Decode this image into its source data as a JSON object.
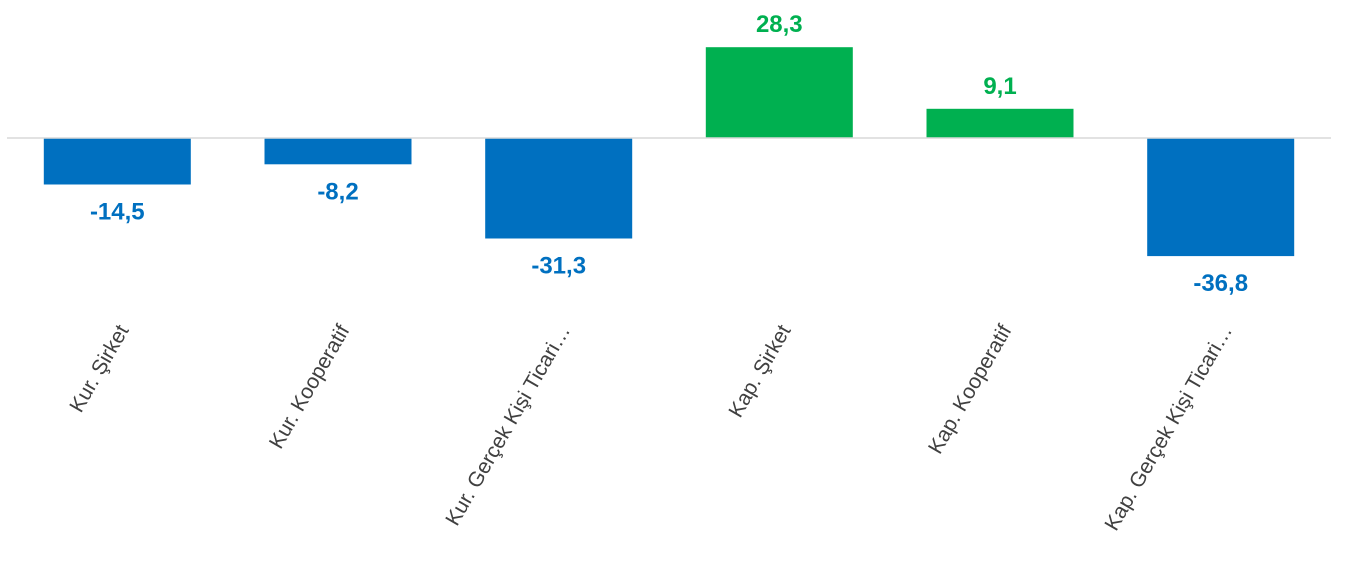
{
  "chart_data": {
    "type": "bar",
    "categories": [
      "Kur. Şirket",
      "Kur. Kooperatif",
      "Kur. Gerçek Kişi Ticari…",
      "Kap. Şirket",
      "Kap. Kooperatif",
      "Kap. Gerçek Kişi Ticari…"
    ],
    "values": [
      -14.5,
      -8.2,
      -31.3,
      28.3,
      9.1,
      -36.8
    ],
    "value_labels": [
      "-14,5",
      "-8,2",
      "-31,3",
      "28,3",
      "9,1",
      "-36,8"
    ],
    "title": "",
    "xlabel": "",
    "ylabel": "",
    "ylim": [
      -40,
      30
    ],
    "grid": false,
    "legend": "none",
    "colors": {
      "negative": "#0070C0",
      "positive": "#00B050",
      "axis": "#D9D9D9",
      "category_text": "#404040"
    }
  }
}
